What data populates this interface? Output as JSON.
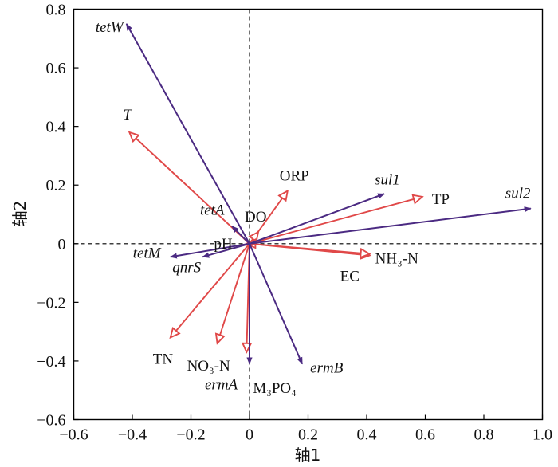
{
  "chart_data": {
    "type": "scatter",
    "subtype": "rda-biplot",
    "xlabel": "轴1",
    "ylabel": "轴2",
    "xlim": [
      -0.6,
      1.0
    ],
    "ylim": [
      -0.6,
      0.8
    ],
    "xticks": [
      "−0.6",
      "−0.4",
      "−0.2",
      "0",
      "0.2",
      "0.4",
      "0.6",
      "0.8",
      "1.0"
    ],
    "yticks": [
      "−0.6",
      "−0.4",
      "−0.2",
      "0",
      "0.2",
      "0.4",
      "0.6",
      "0.8"
    ],
    "reference_lines": "dashed at x=0 and y=0",
    "colors": {
      "genes": "#4b2a82",
      "environment": "#e04848",
      "frame": "#000000"
    },
    "series": [
      {
        "arrow_style": "filled-head",
        "vectors": [
          {
            "label": "tetW",
            "x": -0.42,
            "y": 0.75
          },
          {
            "label": "sul1",
            "x": 0.46,
            "y": 0.17
          },
          {
            "label": "sul2",
            "x": 0.96,
            "y": 0.12
          },
          {
            "label": "tetA",
            "x": -0.06,
            "y": 0.06
          },
          {
            "label": "tetM",
            "x": -0.27,
            "y": -0.045
          },
          {
            "label": "qnrS",
            "x": -0.16,
            "y": -0.045
          },
          {
            "label": "ermA",
            "x": 0.0,
            "y": -0.41
          },
          {
            "label": "ermB",
            "x": 0.18,
            "y": -0.41
          }
        ]
      },
      {
        "arrow_style": "open-head",
        "vectors": [
          {
            "label": "T",
            "x": -0.41,
            "y": 0.38
          },
          {
            "label": "ORP",
            "x": 0.13,
            "y": 0.18
          },
          {
            "label": "TP",
            "x": 0.59,
            "y": 0.16
          },
          {
            "label": "DO",
            "x": 0.03,
            "y": 0.04
          },
          {
            "label": "pH",
            "x": -0.01,
            "y": 0.0
          },
          {
            "label": "NH₃-N",
            "x": 0.41,
            "y": -0.04
          },
          {
            "label": "EC",
            "x": 0.41,
            "y": -0.035
          },
          {
            "label": "TN",
            "x": -0.27,
            "y": -0.32
          },
          {
            "label": "NO₃-N",
            "x": -0.11,
            "y": -0.34
          },
          {
            "label": "M₃PO₄",
            "x": -0.01,
            "y": -0.37
          }
        ]
      }
    ]
  }
}
